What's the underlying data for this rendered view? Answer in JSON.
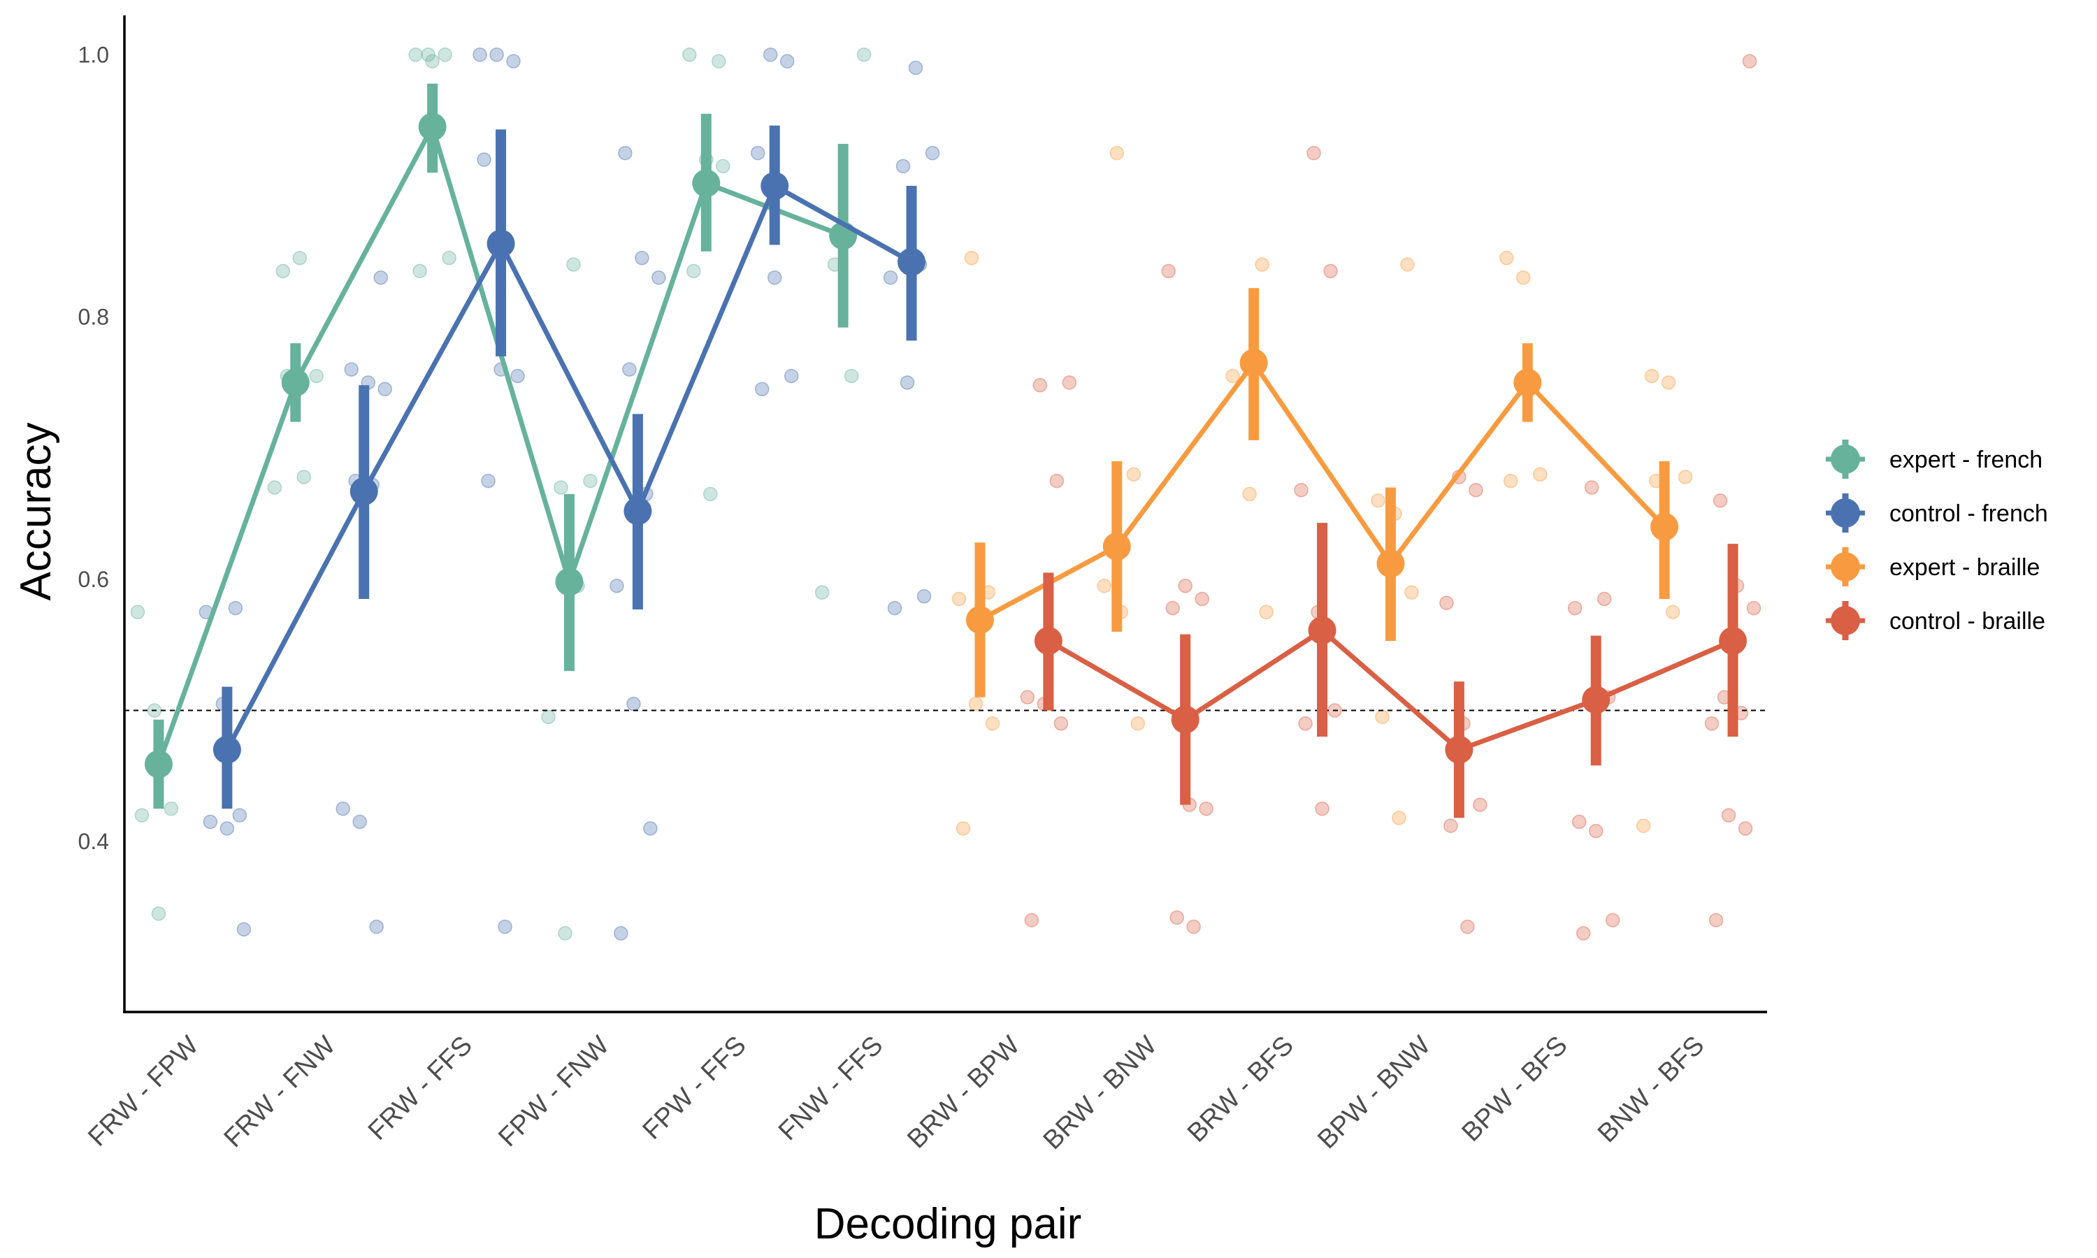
{
  "chart_data": {
    "type": "line",
    "xlabel": "Decoding pair",
    "ylabel": "Accuracy",
    "categories": [
      "FRW - FPW",
      "FRW - FNW",
      "FRW - FFS",
      "FPW - FNW",
      "FPW - FFS",
      "FNW - FFS",
      "BRW - BPW",
      "BRW - BNW",
      "BRW - BFS",
      "BPW - BNW",
      "BPW - BFS",
      "BNW - BFS"
    ],
    "ylim": [
      0.27,
      1.03
    ],
    "yticks": [
      0.4,
      0.6,
      0.8,
      1.0
    ],
    "ytick_labels": [
      "0.4",
      "0.6",
      "0.8",
      "1.0"
    ],
    "chance_level": 0.5,
    "legend_position": "right",
    "grid": false,
    "series": [
      {
        "name": "expert - french",
        "color": "#66b29b",
        "categories": [
          "FRW - FPW",
          "FRW - FNW",
          "FRW - FFS",
          "FPW - FNW",
          "FPW - FFS",
          "FNW - FFS"
        ],
        "mean": [
          0.459,
          0.75,
          0.945,
          0.598,
          0.902,
          0.862
        ],
        "error_low": [
          0.425,
          0.72,
          0.91,
          0.53,
          0.85,
          0.792
        ],
        "error_high": [
          0.493,
          0.78,
          0.978,
          0.665,
          0.955,
          0.932
        ],
        "points": [
          [
            0.575,
            0.5,
            0.425,
            0.42,
            0.345
          ],
          [
            0.835,
            0.845,
            0.755,
            0.755,
            0.678,
            0.67
          ],
          [
            1.0,
            1.0,
            1.0,
            0.995,
            0.845,
            0.835
          ],
          [
            0.84,
            0.675,
            0.67,
            0.595,
            0.495,
            0.33
          ],
          [
            0.995,
            1.0,
            0.92,
            0.915,
            0.835,
            0.665
          ],
          [
            1.0,
            0.84,
            0.755,
            0.59
          ]
        ]
      },
      {
        "name": "control - french",
        "color": "#4a72b0",
        "categories": [
          "FRW - FPW",
          "FRW - FNW",
          "FRW - FFS",
          "FPW - FNW",
          "FPW - FFS",
          "FNW - FFS"
        ],
        "mean": [
          0.47,
          0.667,
          0.856,
          0.652,
          0.9,
          0.842
        ],
        "error_low": [
          0.425,
          0.585,
          0.77,
          0.577,
          0.855,
          0.782
        ],
        "error_high": [
          0.518,
          0.748,
          0.943,
          0.726,
          0.946,
          0.9
        ],
        "points": [
          [
            0.578,
            0.575,
            0.505,
            0.42,
            0.415,
            0.41,
            0.333
          ],
          [
            0.83,
            0.76,
            0.75,
            0.745,
            0.675,
            0.672,
            0.425,
            0.415,
            0.335
          ],
          [
            1.0,
            1.0,
            0.995,
            0.92,
            0.76,
            0.755,
            0.675,
            0.335
          ],
          [
            0.925,
            0.845,
            0.83,
            0.76,
            0.665,
            0.595,
            0.505,
            0.41,
            0.33
          ],
          [
            1.0,
            0.995,
            0.925,
            0.83,
            0.755,
            0.745
          ],
          [
            0.99,
            0.925,
            0.915,
            0.84,
            0.83,
            0.75,
            0.587,
            0.578
          ]
        ]
      },
      {
        "name": "expert - braille",
        "color": "#f89b40",
        "categories": [
          "BRW - BPW",
          "BRW - BNW",
          "BRW - BFS",
          "BPW - BNW",
          "BPW - BFS",
          "BNW - BFS"
        ],
        "mean": [
          0.569,
          0.625,
          0.765,
          0.612,
          0.75,
          0.64
        ],
        "error_low": [
          0.51,
          0.56,
          0.706,
          0.553,
          0.72,
          0.585
        ],
        "error_high": [
          0.628,
          0.69,
          0.822,
          0.67,
          0.78,
          0.69
        ],
        "points": [
          [
            0.845,
            0.59,
            0.585,
            0.505,
            0.49,
            0.41
          ],
          [
            0.925,
            0.68,
            0.595,
            0.575,
            0.49
          ],
          [
            0.84,
            0.755,
            0.665,
            0.575
          ],
          [
            0.84,
            0.66,
            0.65,
            0.59,
            0.495,
            0.418
          ],
          [
            0.845,
            0.83,
            0.68,
            0.675
          ],
          [
            0.755,
            0.75,
            0.678,
            0.675,
            0.575,
            0.412
          ]
        ]
      },
      {
        "name": "control - braille",
        "color": "#d95f45",
        "categories": [
          "BRW - BPW",
          "BRW - BNW",
          "BRW - BFS",
          "BPW - BNW",
          "BPW - BFS",
          "BNW - BFS"
        ],
        "mean": [
          0.553,
          0.493,
          0.561,
          0.47,
          0.508,
          0.553
        ],
        "error_low": [
          0.5,
          0.428,
          0.48,
          0.418,
          0.458,
          0.48
        ],
        "error_high": [
          0.605,
          0.558,
          0.643,
          0.522,
          0.557,
          0.627
        ],
        "points": [
          [
            0.75,
            0.748,
            0.675,
            0.51,
            0.505,
            0.49,
            0.34
          ],
          [
            0.835,
            0.595,
            0.585,
            0.578,
            0.428,
            0.425,
            0.342,
            0.335
          ],
          [
            0.925,
            0.835,
            0.668,
            0.575,
            0.5,
            0.49,
            0.425
          ],
          [
            0.678,
            0.668,
            0.582,
            0.49,
            0.428,
            0.412,
            0.335
          ],
          [
            0.585,
            0.578,
            0.67,
            0.51,
            0.415,
            0.408,
            0.34,
            0.33
          ],
          [
            0.995,
            0.66,
            0.595,
            0.578,
            0.51,
            0.498,
            0.49,
            0.42,
            0.41,
            0.34
          ]
        ]
      }
    ]
  }
}
